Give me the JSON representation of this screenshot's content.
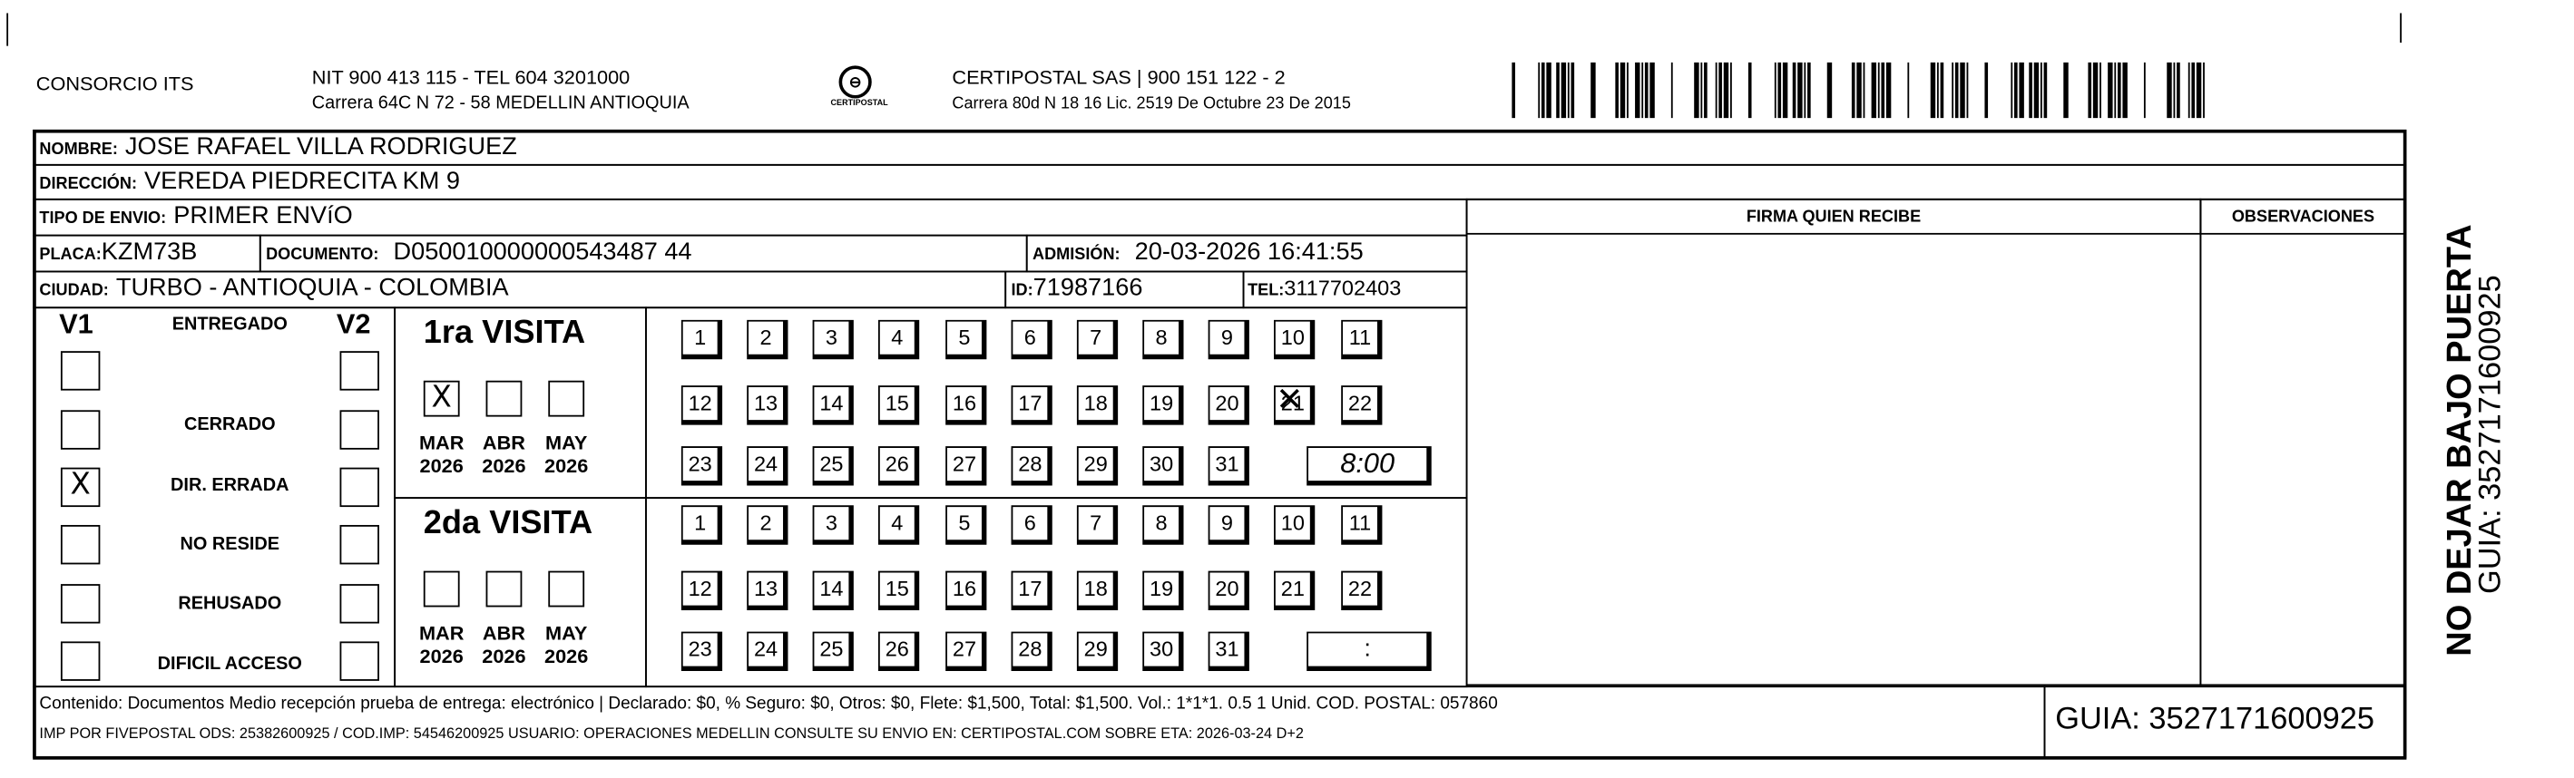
{
  "header": {
    "company": "CONSORCIO ITS",
    "nit_line": "NIT 900 413 115 - TEL 604 3201000",
    "address_line": "Carrera 64C N 72 - 58 MEDELLIN ANTIOQUIA",
    "logo_text": "CERTIPOSTAL",
    "carrier_line": "CERTIPOSTAL SAS | 900 151 122 - 2",
    "carrier_address": "Carrera 80d N 18 16  Lic. 2519 De Octubre 23 De 2015"
  },
  "recipient": {
    "nombre_label": "NOMBRE:",
    "nombre": "JOSE RAFAEL VILLA RODRIGUEZ",
    "direccion_label": "DIRECCIÓN:",
    "direccion": "VEREDA PIEDRECITA KM 9",
    "tipo_label": "TIPO DE ENVIO:",
    "tipo": "PRIMER ENVíO",
    "placa_label": "PLACA:",
    "placa": "KZM73B",
    "documento_label": "DOCUMENTO:",
    "documento": "D050010000000543487 44",
    "admision_label": "ADMISIÓN:",
    "admision": "20-03-2026 16:41:55",
    "ciudad_label": "CIUDAD:",
    "ciudad": "TURBO - ANTIOQUIA - COLOMBIA",
    "id_label": "ID:",
    "id": "71987166",
    "tel_label": "TEL:",
    "tel": "3117702403"
  },
  "firma_label": "FIRMA QUIEN RECIBE",
  "observaciones_label": "OBSERVACIONES",
  "status": {
    "v1_label": "V1",
    "v2_label": "V2",
    "items": [
      {
        "label": "ENTREGADO",
        "v1": "",
        "v2": ""
      },
      {
        "label": "CERRADO",
        "v1": "",
        "v2": ""
      },
      {
        "label": "DIR. ERRADA",
        "v1": "X",
        "v2": ""
      },
      {
        "label": "NO RESIDE",
        "v1": "",
        "v2": ""
      },
      {
        "label": "REHUSADO",
        "v1": "",
        "v2": ""
      },
      {
        "label": "DIFICIL ACCESO",
        "v1": "",
        "v2": ""
      }
    ]
  },
  "visits": [
    {
      "title": "1ra VISITA",
      "months": [
        {
          "m": "MAR",
          "y": "2026",
          "mark": "X"
        },
        {
          "m": "ABR",
          "y": "2026",
          "mark": ""
        },
        {
          "m": "MAY",
          "y": "2026",
          "mark": ""
        }
      ],
      "marked_day": "21",
      "time": "8:00"
    },
    {
      "title": "2da VISITA",
      "months": [
        {
          "m": "MAR",
          "y": "2026",
          "mark": ""
        },
        {
          "m": "ABR",
          "y": "2026",
          "mark": ""
        },
        {
          "m": "MAY",
          "y": "2026",
          "mark": ""
        }
      ],
      "marked_day": "",
      "time": ":"
    }
  ],
  "days": [
    "1",
    "2",
    "3",
    "4",
    "5",
    "6",
    "7",
    "8",
    "9",
    "10",
    "11",
    "12",
    "13",
    "14",
    "15",
    "16",
    "17",
    "18",
    "19",
    "20",
    "21",
    "22",
    "23",
    "24",
    "25",
    "26",
    "27",
    "28",
    "29",
    "30",
    "31"
  ],
  "footer": {
    "contenido": "Contenido: Documentos Medio recepción prueba de entrega: electrónico | Declarado: $0, % Seguro: $0, Otros: $0, Flete: $1,500, Total: $1,500. Vol.: 1*1*1. 0.5  1 Unid. COD. POSTAL: 057860",
    "imp": "IMP POR FIVEPOSTAL ODS: 25382600925 / COD.IMP: 54546200925 USUARIO: OPERACIONES MEDELLIN CONSULTE SU ENVIO EN: CERTIPOSTAL.COM SOBRE ETA: 2026-03-24 D+2",
    "guia": "GUIA: 3527171600925"
  },
  "side": {
    "warning": "NO DEJAR BAJO PUERTA",
    "guia": "GUIA: 3527171600925"
  }
}
